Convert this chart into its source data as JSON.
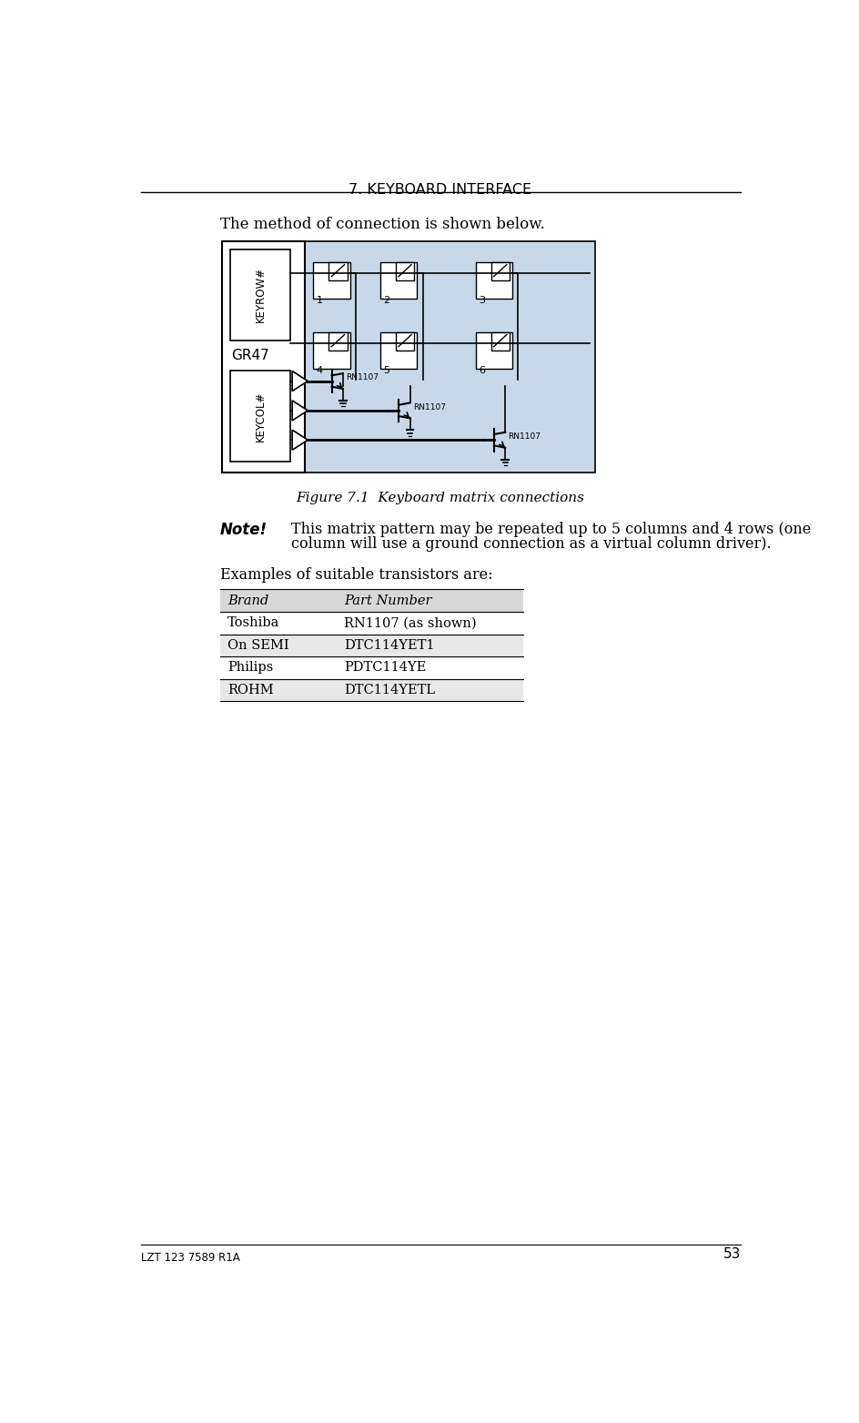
{
  "page_title": "7. KEYBOARD INTERFACE",
  "page_number": "53",
  "footer_left": "LZT 123 7589 R1A",
  "intro_text": "The method of connection is shown below.",
  "figure_caption": "Figure 7.1  Keyboard matrix connections",
  "note_label": "Note!",
  "note_text_line1": "This matrix pattern may be repeated up to 5 columns and 4 rows (one",
  "note_text_line2": "column will use a ground connection as a virtual column driver).",
  "examples_text": "Examples of suitable transistors are:",
  "table_header": [
    "Brand",
    "Part Number"
  ],
  "table_rows": [
    [
      "Toshiba",
      "RN1107 (as shown)"
    ],
    [
      "On SEMI",
      "DTC114YET1"
    ],
    [
      "Philips",
      "PDTC114YE"
    ],
    [
      "ROHM",
      "DTC114YETL"
    ]
  ],
  "diagram_bg": "#c8d8e8",
  "key_labels": [
    "1",
    "2",
    "3",
    "4",
    "5",
    "6"
  ],
  "gr47_label": "GR47",
  "keyrow_label": "KEYROW#",
  "keycol_label": "KEYCOL#",
  "rn1107_label": "RN1107",
  "background_color": "#ffffff",
  "text_color": "#000000",
  "shade_color": "#e8e8e8",
  "header_shade": "#d8d8d8"
}
